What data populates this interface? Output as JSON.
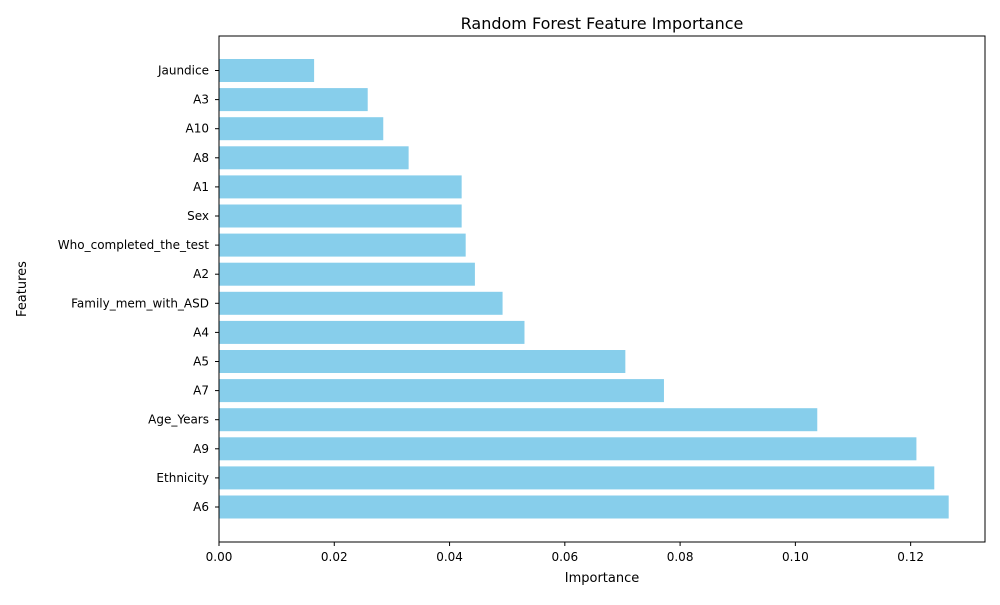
{
  "chart_data": {
    "type": "bar",
    "orientation": "horizontal",
    "title": "Random Forest Feature Importance",
    "xlabel": "Importance",
    "ylabel": "Features",
    "categories": [
      "A6",
      "Ethnicity",
      "A9",
      "Age_Years",
      "A7",
      "A5",
      "A4",
      "Family_mem_with_ASD",
      "A2",
      "Who_completed_the_test",
      "Sex",
      "A1",
      "A8",
      "A10",
      "A3",
      "Jaundice"
    ],
    "values": [
      0.1266,
      0.1241,
      0.121,
      0.1038,
      0.0772,
      0.0705,
      0.053,
      0.0492,
      0.0444,
      0.0428,
      0.0421,
      0.0421,
      0.0329,
      0.0285,
      0.0258,
      0.0165
    ],
    "xlim": [
      0,
      0.1329
    ],
    "xticks": [
      0.0,
      0.02,
      0.04,
      0.06,
      0.08,
      0.1,
      0.12
    ],
    "xtick_labels": [
      "0.00",
      "0.02",
      "0.04",
      "0.06",
      "0.08",
      "0.10",
      "0.12"
    ],
    "bar_color": "#87ceeb",
    "grid": false,
    "legend": "none"
  }
}
